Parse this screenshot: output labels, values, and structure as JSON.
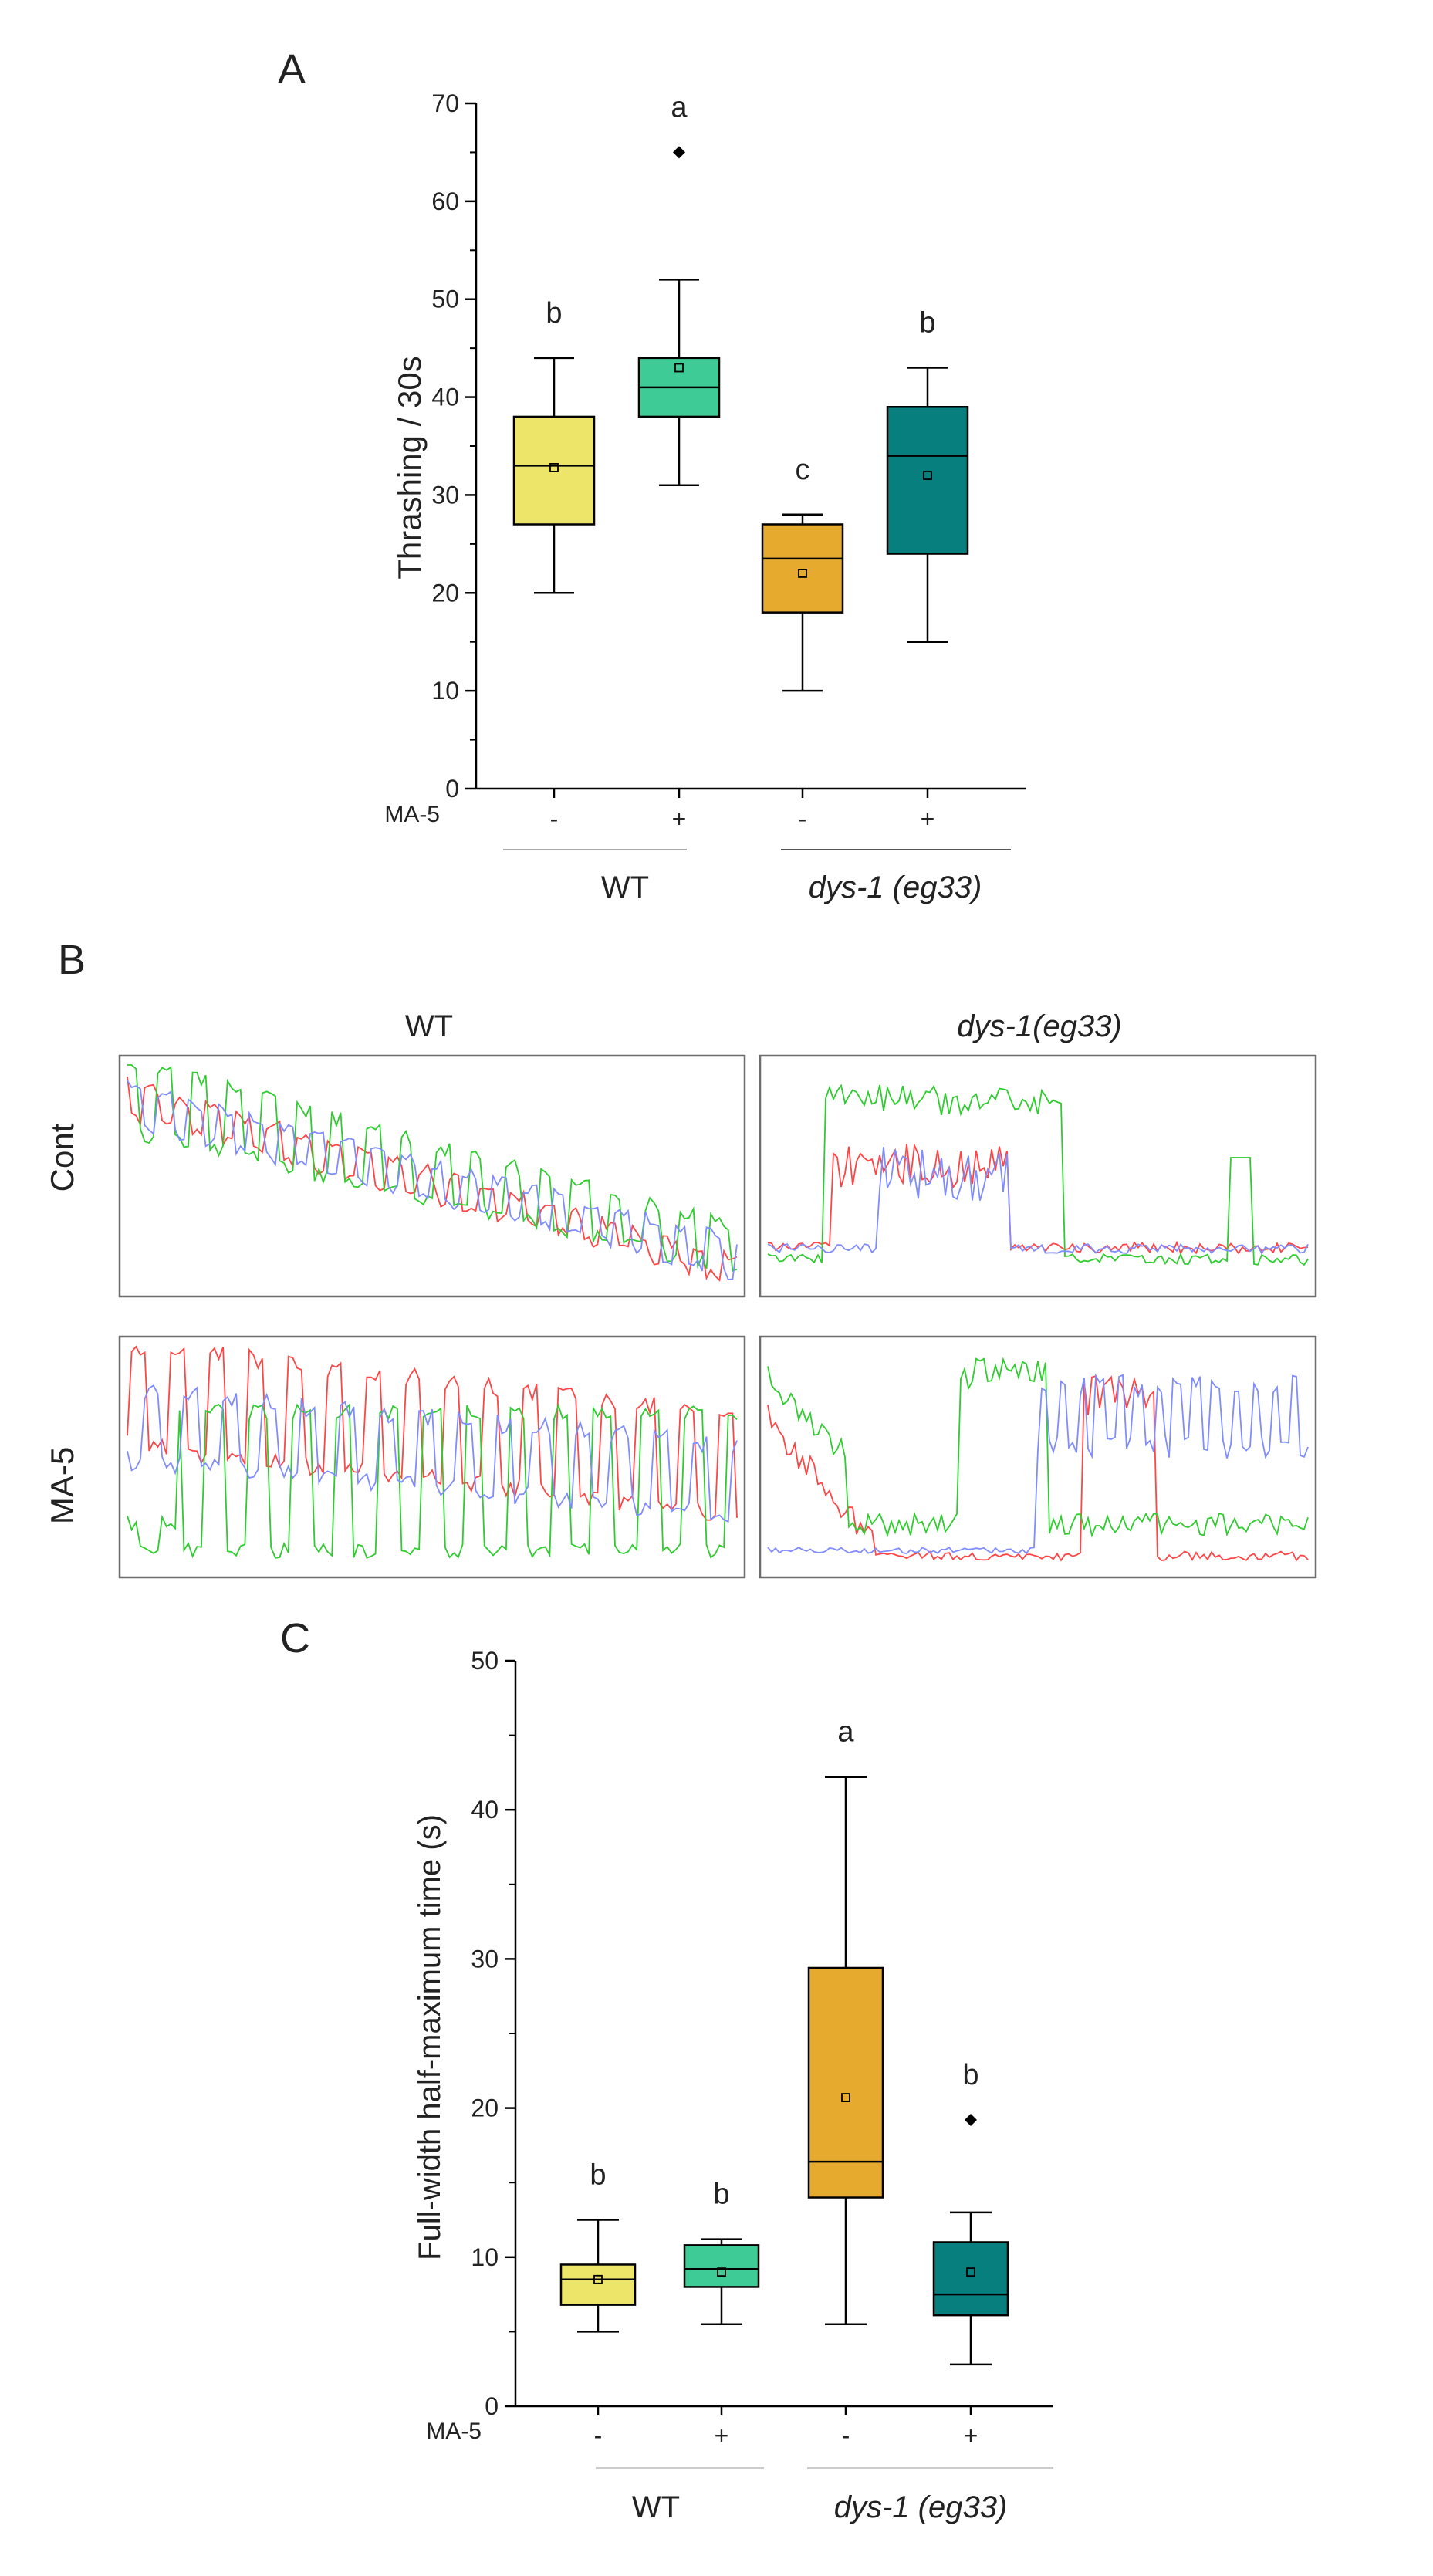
{
  "chart_data": [
    {
      "panel": "A",
      "type": "box",
      "ylabel": "Thrashing / 30s",
      "ylim": [
        0,
        70
      ],
      "yticks": [
        0,
        10,
        20,
        30,
        40,
        50,
        60,
        70
      ],
      "row_label": "MA-5",
      "treatment_labels": [
        "-",
        "+",
        "-",
        "+"
      ],
      "group_labels": [
        {
          "text": "WT",
          "italic": false
        },
        {
          "text": "dys-1 (eg33)",
          "italic": true
        }
      ],
      "boxes": [
        {
          "name": "WT -",
          "whisker_low": 20,
          "q1": 27,
          "median": 33,
          "q3": 38,
          "whisker_high": 44,
          "mean": 32.8,
          "outliers": [],
          "letter": "b",
          "color": "#EDE56A"
        },
        {
          "name": "WT +",
          "whisker_low": 31,
          "q1": 38,
          "median": 41,
          "q3": 44,
          "whisker_high": 52,
          "mean": 43,
          "outliers": [
            65
          ],
          "letter": "a",
          "color": "#3ECB95"
        },
        {
          "name": "dys-1 -",
          "whisker_low": 10,
          "q1": 18,
          "median": 23.5,
          "q3": 27,
          "whisker_high": 28,
          "mean": 22,
          "outliers": [],
          "letter": "c",
          "color": "#E6AA2F"
        },
        {
          "name": "dys-1 +",
          "whisker_low": 15,
          "q1": 24,
          "median": 34,
          "q3": 39,
          "whisker_high": 43,
          "mean": 32,
          "outliers": [],
          "letter": "b",
          "color": "#087F7F"
        }
      ]
    },
    {
      "panel": "B",
      "type": "line",
      "column_labels": [
        {
          "text": "WT",
          "italic": false
        },
        {
          "text": "dys-1(eg33)",
          "italic": true
        }
      ],
      "row_labels": [
        "Cont",
        "MA-5"
      ],
      "series_colors": [
        "#ff4545",
        "#2ecc2e",
        "#7f8cff"
      ]
    },
    {
      "panel": "C",
      "type": "box",
      "ylabel": "Full-width half-maximum time (s)",
      "ylim": [
        0,
        50
      ],
      "yticks": [
        0,
        10,
        20,
        30,
        40,
        50
      ],
      "row_label": "MA-5",
      "treatment_labels": [
        "-",
        "+",
        "-",
        "+"
      ],
      "group_labels": [
        {
          "text": "WT",
          "italic": false
        },
        {
          "text": "dys-1 (eg33)",
          "italic": true
        }
      ],
      "boxes": [
        {
          "name": "WT -",
          "whisker_low": 5,
          "q1": 6.8,
          "median": 8.5,
          "q3": 9.5,
          "whisker_high": 12.5,
          "mean": 8.5,
          "outliers": [],
          "letter": "b",
          "color": "#EDE56A"
        },
        {
          "name": "WT +",
          "whisker_low": 5.5,
          "q1": 8,
          "median": 9.2,
          "q3": 10.8,
          "whisker_high": 11.2,
          "mean": 9,
          "outliers": [],
          "letter": "b",
          "color": "#3ECB95"
        },
        {
          "name": "dys-1 -",
          "whisker_low": 5.5,
          "q1": 14,
          "median": 16.4,
          "q3": 29.4,
          "whisker_high": 42.2,
          "mean": 20.7,
          "outliers": [],
          "letter": "a",
          "color": "#E6AA2F"
        },
        {
          "name": "dys-1 +",
          "whisker_low": 2.8,
          "q1": 6.1,
          "median": 7.5,
          "q3": 11,
          "whisker_high": 13,
          "mean": 9,
          "outliers": [
            19.2
          ],
          "letter": "b",
          "color": "#087F7F"
        }
      ]
    }
  ]
}
